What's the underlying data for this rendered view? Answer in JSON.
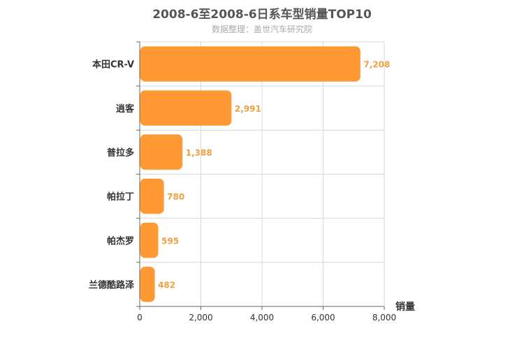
{
  "chart_data": {
    "type": "bar",
    "orientation": "horizontal",
    "title": "2008-6至2008-6日系车型销量TOP10",
    "subtitle": "数据整理：盖世汽车研究院",
    "categories": [
      "本田CR-V",
      "逍客",
      "普拉多",
      "帕拉丁",
      "帕杰罗",
      "兰德酷路泽"
    ],
    "values": [
      7208,
      2991,
      1388,
      780,
      595,
      482
    ],
    "data_labels": [
      "7,208",
      "2,991",
      "1,388",
      "780",
      "595",
      "482"
    ],
    "xlabel": "销量",
    "xlim": [
      0,
      8000
    ],
    "xticks": [
      0,
      2000,
      4000,
      6000,
      8000
    ],
    "xtick_labels": [
      "0",
      "2,000",
      "4,000",
      "6,000",
      "8,000"
    ],
    "grid": true,
    "bar_color": "#ff9933",
    "label_color": "#f0a040"
  }
}
